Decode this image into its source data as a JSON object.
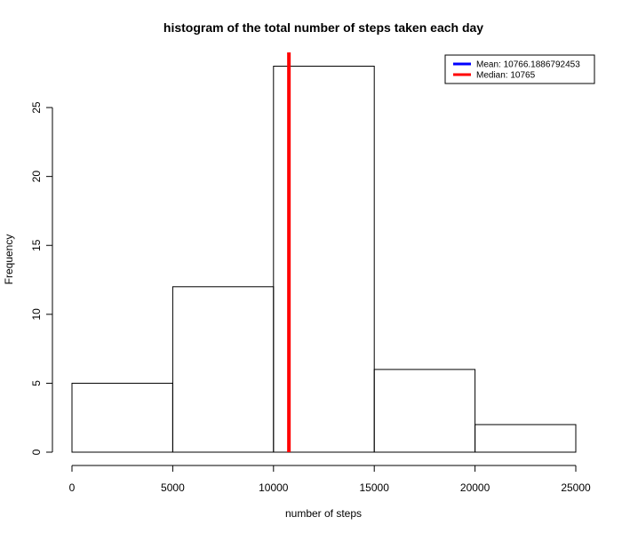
{
  "chart_data": {
    "type": "bar",
    "title": "histogram of the total number of steps taken each day",
    "xlabel": "number of steps",
    "ylabel": "Frequency",
    "bins": [
      {
        "from": 0,
        "to": 5000,
        "count": 5
      },
      {
        "from": 5000,
        "to": 10000,
        "count": 12
      },
      {
        "from": 10000,
        "to": 15000,
        "count": 28
      },
      {
        "from": 15000,
        "to": 20000,
        "count": 6
      },
      {
        "from": 20000,
        "to": 25000,
        "count": 2
      }
    ],
    "xlim": [
      0,
      25000
    ],
    "ylim": [
      0,
      29
    ],
    "x_ticks": [
      0,
      5000,
      10000,
      15000,
      20000,
      25000
    ],
    "y_ticks": [
      0,
      5,
      10,
      15,
      20,
      25
    ],
    "grid": false,
    "legend_position": "top-right",
    "reference_lines": [
      {
        "label": "Mean:  10766.1886792453",
        "value": 10766.1886792453,
        "color": "#0000ff",
        "shown_on_plot": false
      },
      {
        "label": "Median:  10765",
        "value": 10765,
        "color": "#ff0000",
        "shown_on_plot": true
      }
    ]
  }
}
